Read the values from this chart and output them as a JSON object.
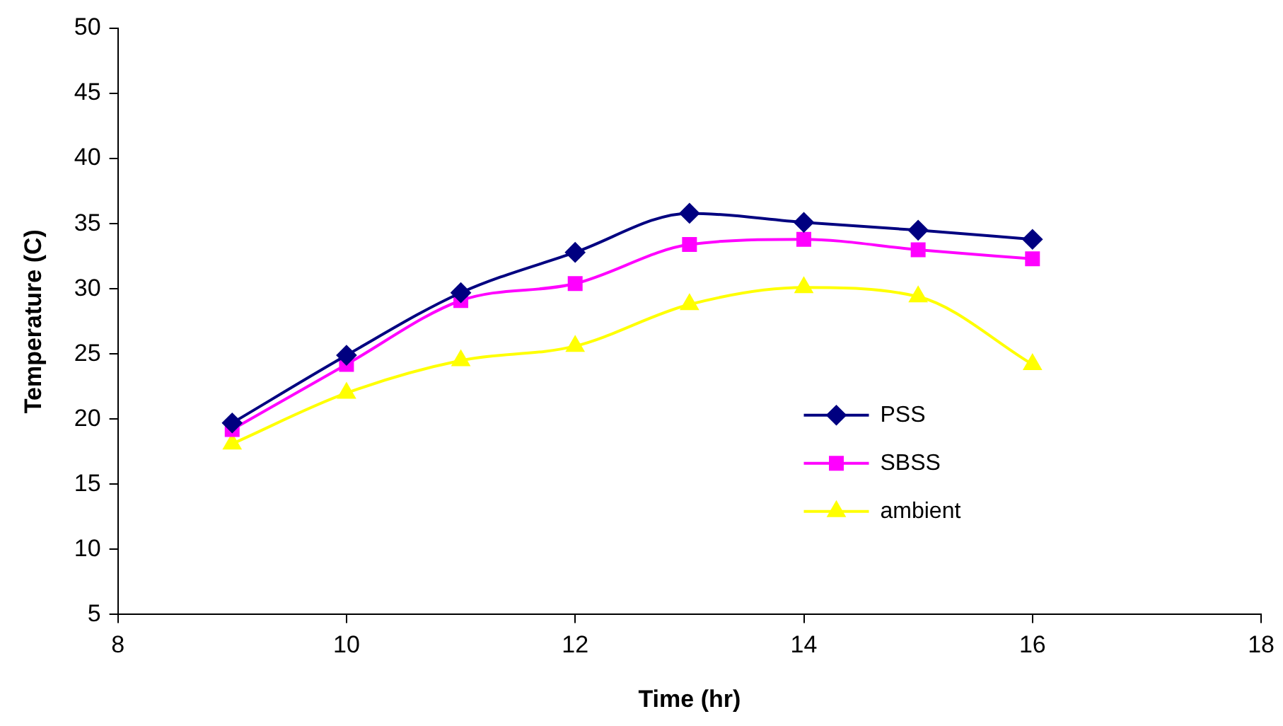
{
  "chart_data": {
    "type": "line",
    "xlabel": "Time (hr)",
    "ylabel": "Temperature (C)",
    "x": [
      9,
      10,
      11,
      12,
      13,
      14,
      15,
      16
    ],
    "series": [
      {
        "name": "PSS",
        "color": "#000080",
        "marker": "diamond",
        "values": [
          19.7,
          24.9,
          29.7,
          32.8,
          35.8,
          35.1,
          34.5,
          33.8
        ]
      },
      {
        "name": "SBSS",
        "color": "#ff00ff",
        "marker": "square",
        "values": [
          19.2,
          24.2,
          29.1,
          30.4,
          33.4,
          33.8,
          33.0,
          32.3
        ]
      },
      {
        "name": "ambient",
        "color": "#ffff00",
        "marker": "triangle",
        "values": [
          18.1,
          22.0,
          24.5,
          25.6,
          28.8,
          30.1,
          29.4,
          24.2
        ]
      }
    ],
    "xlim": [
      8,
      18
    ],
    "xticks": [
      8,
      10,
      12,
      14,
      16,
      18
    ],
    "ylim": [
      5,
      50
    ],
    "yticks": [
      5,
      10,
      15,
      20,
      25,
      30,
      35,
      40,
      45,
      50
    ],
    "grid": false,
    "legend": "right",
    "line_style": "solid"
  }
}
